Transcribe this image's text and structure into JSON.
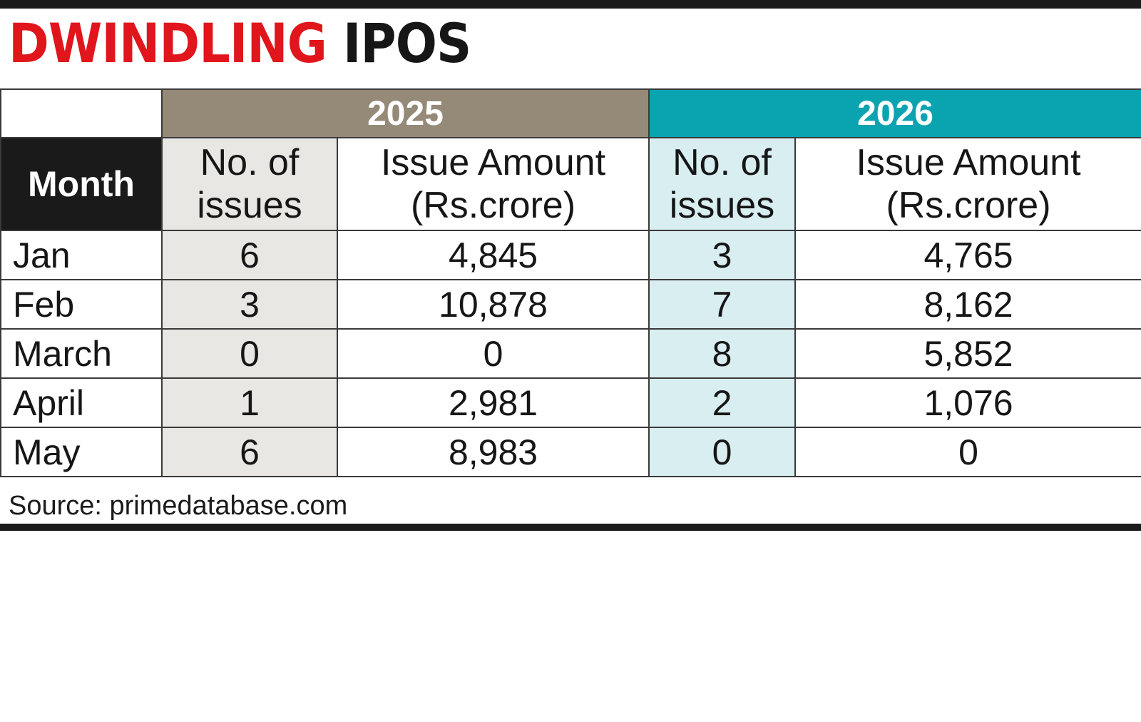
{
  "title": {
    "highlight": "DWINDLING",
    "rest": "IPOS"
  },
  "table": {
    "years": [
      "2025",
      "2026"
    ],
    "headers": {
      "month": "Month",
      "issues": "No. of issues",
      "amount": "Issue Amount (Rs.crore)"
    },
    "rows": [
      {
        "month": "Jan",
        "issues_2025": "6",
        "amount_2025": "4,845",
        "issues_2026": "3",
        "amount_2026": "4,765"
      },
      {
        "month": "Feb",
        "issues_2025": "3",
        "amount_2025": "10,878",
        "issues_2026": "7",
        "amount_2026": "8,162"
      },
      {
        "month": "March",
        "issues_2025": "0",
        "amount_2025": "0",
        "issues_2026": "8",
        "amount_2026": "5,852"
      },
      {
        "month": "April",
        "issues_2025": "1",
        "amount_2025": "2,981",
        "issues_2026": "2",
        "amount_2026": "1,076"
      },
      {
        "month": "May",
        "issues_2025": "6",
        "amount_2025": "8,983",
        "issues_2026": "0",
        "amount_2026": "0"
      }
    ]
  },
  "source": "Source: primedatabase.com",
  "colors": {
    "title_red": "#e0161c",
    "year_2025": "#958a78",
    "year_2026": "#0aa4b0",
    "month_header": "#1a1a1a",
    "shade_2025": "#e8e7e4",
    "shade_2026": "#d9eef1"
  },
  "chart_data": {
    "type": "table",
    "title": "DWINDLING IPOS",
    "columns": [
      "Month",
      "2025 No. of issues",
      "2025 Issue Amount (Rs.crore)",
      "2026 No. of issues",
      "2026 Issue Amount (Rs.crore)"
    ],
    "rows": [
      [
        "Jan",
        6,
        4845,
        3,
        4765
      ],
      [
        "Feb",
        3,
        10878,
        7,
        8162
      ],
      [
        "March",
        0,
        0,
        8,
        5852
      ],
      [
        "April",
        1,
        2981,
        2,
        1076
      ],
      [
        "May",
        6,
        8983,
        0,
        0
      ]
    ]
  }
}
